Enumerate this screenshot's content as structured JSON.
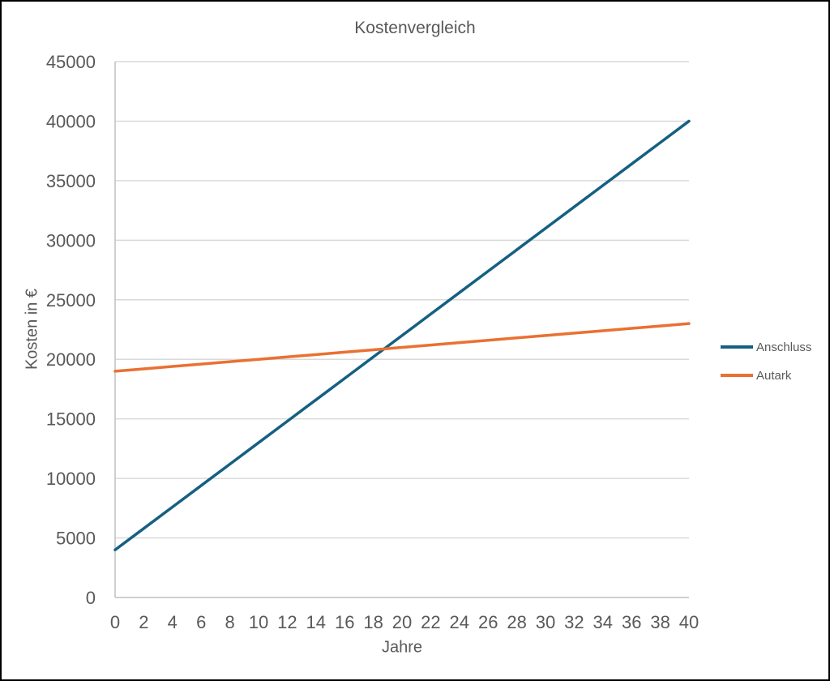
{
  "window": {
    "background_color": "#ffffff",
    "border_color": "#000000"
  },
  "chart_data": {
    "type": "line",
    "title": "Kostenvergleich",
    "xlabel": "Jahre",
    "ylabel": "Kosten in €",
    "xlim": [
      0,
      40
    ],
    "ylim": [
      0,
      45000
    ],
    "x_ticks": [
      0,
      2,
      4,
      6,
      8,
      10,
      12,
      14,
      16,
      18,
      20,
      22,
      24,
      26,
      28,
      30,
      32,
      34,
      36,
      38,
      40
    ],
    "y_ticks": [
      0,
      5000,
      10000,
      15000,
      20000,
      25000,
      30000,
      35000,
      40000,
      45000
    ],
    "grid": "horizontal",
    "legend_position": "right",
    "colors": {
      "gridline": "#D9D9D9",
      "axis": "#BFBFBF",
      "text": "#595959"
    },
    "series": [
      {
        "name": "Anschluss",
        "color": "#156082",
        "x": [
          0,
          2,
          4,
          6,
          8,
          10,
          12,
          14,
          16,
          18,
          20,
          22,
          24,
          26,
          28,
          30,
          32,
          34,
          36,
          38,
          40
        ],
        "y": [
          4000,
          5800,
          7600,
          9400,
          11200,
          13000,
          14800,
          16600,
          18400,
          20200,
          22000,
          23800,
          25600,
          27400,
          29200,
          31000,
          32800,
          34600,
          36400,
          38200,
          40000
        ]
      },
      {
        "name": "Autark",
        "color": "#E97132",
        "x": [
          0,
          2,
          4,
          6,
          8,
          10,
          12,
          14,
          16,
          18,
          20,
          22,
          24,
          26,
          28,
          30,
          32,
          34,
          36,
          38,
          40
        ],
        "y": [
          19000,
          19200,
          19400,
          19600,
          19800,
          20000,
          20200,
          20400,
          20600,
          20800,
          21000,
          21200,
          21400,
          21600,
          21800,
          22000,
          22200,
          22400,
          22600,
          22800,
          23000
        ]
      }
    ],
    "annotations": {
      "intersection": {
        "x": 18.75,
        "y": 20875
      }
    }
  }
}
